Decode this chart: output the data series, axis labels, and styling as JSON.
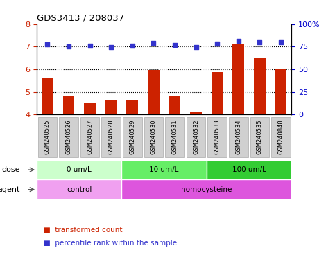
{
  "title": "GDS3413 / 208037",
  "samples": [
    "GSM240525",
    "GSM240526",
    "GSM240527",
    "GSM240528",
    "GSM240529",
    "GSM240530",
    "GSM240531",
    "GSM240532",
    "GSM240533",
    "GSM240534",
    "GSM240535",
    "GSM240848"
  ],
  "bar_values": [
    5.6,
    4.85,
    4.5,
    4.65,
    4.65,
    5.97,
    4.85,
    4.12,
    5.87,
    7.1,
    6.5,
    6.0
  ],
  "dot_values": [
    7.1,
    7.02,
    7.05,
    6.97,
    7.04,
    7.15,
    7.07,
    6.97,
    7.12,
    7.25,
    7.18,
    7.18
  ],
  "ylim_left": [
    4,
    8
  ],
  "ylim_right": [
    0,
    100
  ],
  "yticks_left": [
    4,
    5,
    6,
    7,
    8
  ],
  "yticks_right": [
    0,
    25,
    50,
    75,
    100
  ],
  "ytick_labels_right": [
    "0",
    "25",
    "50",
    "75",
    "100%"
  ],
  "bar_color": "#cc2200",
  "dot_color": "#3333cc",
  "gridline_y": [
    5,
    6,
    7
  ],
  "dose_groups": [
    {
      "label": "0 um/L",
      "start": 0,
      "end": 4,
      "color": "#ccffcc"
    },
    {
      "label": "10 um/L",
      "start": 4,
      "end": 8,
      "color": "#66ee66"
    },
    {
      "label": "100 um/L",
      "start": 8,
      "end": 12,
      "color": "#33cc33"
    }
  ],
  "agent_groups": [
    {
      "label": "control",
      "start": 0,
      "end": 4,
      "color": "#f0a0f0"
    },
    {
      "label": "homocysteine",
      "start": 4,
      "end": 12,
      "color": "#dd55dd"
    }
  ],
  "sample_box_color": "#d0d0d0",
  "sample_box_edge": "#aaaaaa",
  "dose_label": "dose",
  "agent_label": "agent",
  "legend_bar_label": "transformed count",
  "legend_dot_label": "percentile rank within the sample",
  "left_axis_color": "#cc2200",
  "right_axis_color": "#0000cc",
  "title_color": "#000000"
}
